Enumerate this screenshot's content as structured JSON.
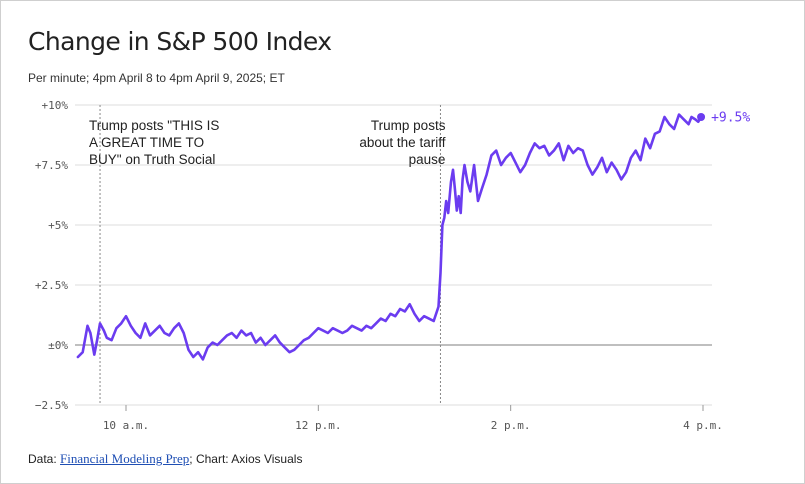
{
  "title": "Change in S&P 500 Index",
  "subtitle": "Per minute; 4pm April 8 to 4pm April 9, 2025; ET",
  "footer": {
    "data_prefix": "Data: ",
    "source_link": "Financial Modeling Prep",
    "chart_credit": "; Chart: Axios Visuals"
  },
  "colors": {
    "line": "#6b3cf0",
    "zero_line": "#999999",
    "grid": "#dddddd",
    "annotation_line": "#888888"
  },
  "annotations": [
    {
      "text": [
        "Trump posts \"THIS IS",
        "A GREAT TIME TO",
        "BUY\" on Truth Social"
      ],
      "time": 9.73,
      "align": "left"
    },
    {
      "text": [
        "Trump posts",
        "about the tariff",
        "pause"
      ],
      "time": 13.27,
      "align": "right"
    }
  ],
  "chart_data": {
    "type": "line",
    "title": "Change in S&P 500 Index",
    "xlabel": "",
    "ylabel": "",
    "xlim": [
      9.5,
      16.0
    ],
    "ylim": [
      -2.5,
      10
    ],
    "y_ticks": [
      {
        "value": 10,
        "label": "+10%"
      },
      {
        "value": 7.5,
        "label": "+7.5%"
      },
      {
        "value": 5,
        "label": "+5%"
      },
      {
        "value": 2.5,
        "label": "+2.5%"
      },
      {
        "value": 0,
        "label": "±0%"
      },
      {
        "value": -2.5,
        "label": "−2.5%"
      }
    ],
    "x_ticks": [
      {
        "value": 10,
        "label": "10 a.m."
      },
      {
        "value": 12,
        "label": "12 p.m."
      },
      {
        "value": 14,
        "label": "2 p.m."
      },
      {
        "value": 16,
        "label": "4 p.m."
      }
    ],
    "end_label": "+9.5%",
    "series": [
      {
        "x": [
          9.5,
          9.55,
          9.6,
          9.63,
          9.67,
          9.7,
          9.73,
          9.77,
          9.8,
          9.85,
          9.9,
          9.95,
          10.0,
          10.05,
          10.1,
          10.15,
          10.2,
          10.25,
          10.3,
          10.35,
          10.4,
          10.45,
          10.5,
          10.55,
          10.6,
          10.65,
          10.7,
          10.75,
          10.8,
          10.85,
          10.9,
          10.95,
          11.0,
          11.05,
          11.1,
          11.15,
          11.2,
          11.25,
          11.3,
          11.35,
          11.4,
          11.45,
          11.5,
          11.55,
          11.6,
          11.65,
          11.7,
          11.75,
          11.8,
          11.85,
          11.9,
          11.95,
          12.0,
          12.05,
          12.1,
          12.15,
          12.2,
          12.25,
          12.3,
          12.35,
          12.4,
          12.45,
          12.5,
          12.55,
          12.6,
          12.65,
          12.7,
          12.75,
          12.8,
          12.85,
          12.9,
          12.95,
          13.0,
          13.05,
          13.1,
          13.15,
          13.2,
          13.25,
          13.27,
          13.29,
          13.31,
          13.33,
          13.35,
          13.38,
          13.4,
          13.42,
          13.44,
          13.46,
          13.48,
          13.5,
          13.52,
          13.55,
          13.58,
          13.62,
          13.66,
          13.7,
          13.75,
          13.8,
          13.85,
          13.9,
          13.95,
          14.0,
          14.05,
          14.1,
          14.15,
          14.2,
          14.25,
          14.3,
          14.35,
          14.4,
          14.45,
          14.5,
          14.55,
          14.6,
          14.65,
          14.7,
          14.75,
          14.8,
          14.85,
          14.9,
          14.95,
          15.0,
          15.05,
          15.1,
          15.15,
          15.2,
          15.25,
          15.3,
          15.35,
          15.4,
          15.45,
          15.5,
          15.55,
          15.6,
          15.65,
          15.7,
          15.75,
          15.8,
          15.85,
          15.88,
          15.92,
          15.95,
          15.98
        ],
        "y": [
          -0.5,
          -0.3,
          0.8,
          0.5,
          -0.4,
          0.2,
          0.9,
          0.6,
          0.3,
          0.2,
          0.7,
          0.9,
          1.2,
          0.8,
          0.5,
          0.3,
          0.9,
          0.4,
          0.6,
          0.8,
          0.5,
          0.4,
          0.7,
          0.9,
          0.5,
          -0.2,
          -0.5,
          -0.3,
          -0.6,
          -0.1,
          0.1,
          0.0,
          0.2,
          0.4,
          0.5,
          0.3,
          0.6,
          0.4,
          0.5,
          0.1,
          0.3,
          0.0,
          0.2,
          0.4,
          0.1,
          -0.1,
          -0.3,
          -0.2,
          0.0,
          0.2,
          0.3,
          0.5,
          0.7,
          0.6,
          0.5,
          0.7,
          0.6,
          0.5,
          0.6,
          0.8,
          0.7,
          0.6,
          0.8,
          0.7,
          0.9,
          1.1,
          1.0,
          1.3,
          1.2,
          1.5,
          1.4,
          1.7,
          1.3,
          1.0,
          1.2,
          1.1,
          1.0,
          1.6,
          3.0,
          5.0,
          5.3,
          6.0,
          5.5,
          6.8,
          7.3,
          6.5,
          5.6,
          6.2,
          5.5,
          6.9,
          7.5,
          6.8,
          6.4,
          7.5,
          6.0,
          6.5,
          7.1,
          7.9,
          8.1,
          7.5,
          7.8,
          8.0,
          7.6,
          7.2,
          7.5,
          8.0,
          8.4,
          8.2,
          8.3,
          7.9,
          8.1,
          8.4,
          7.7,
          8.3,
          8.0,
          8.2,
          8.1,
          7.5,
          7.1,
          7.4,
          7.8,
          7.2,
          7.6,
          7.3,
          6.9,
          7.2,
          7.8,
          8.1,
          7.7,
          8.6,
          8.2,
          8.8,
          8.9,
          9.5,
          9.2,
          9.0,
          9.6,
          9.4,
          9.2,
          9.5,
          9.4,
          9.3,
          9.5
        ]
      }
    ]
  }
}
